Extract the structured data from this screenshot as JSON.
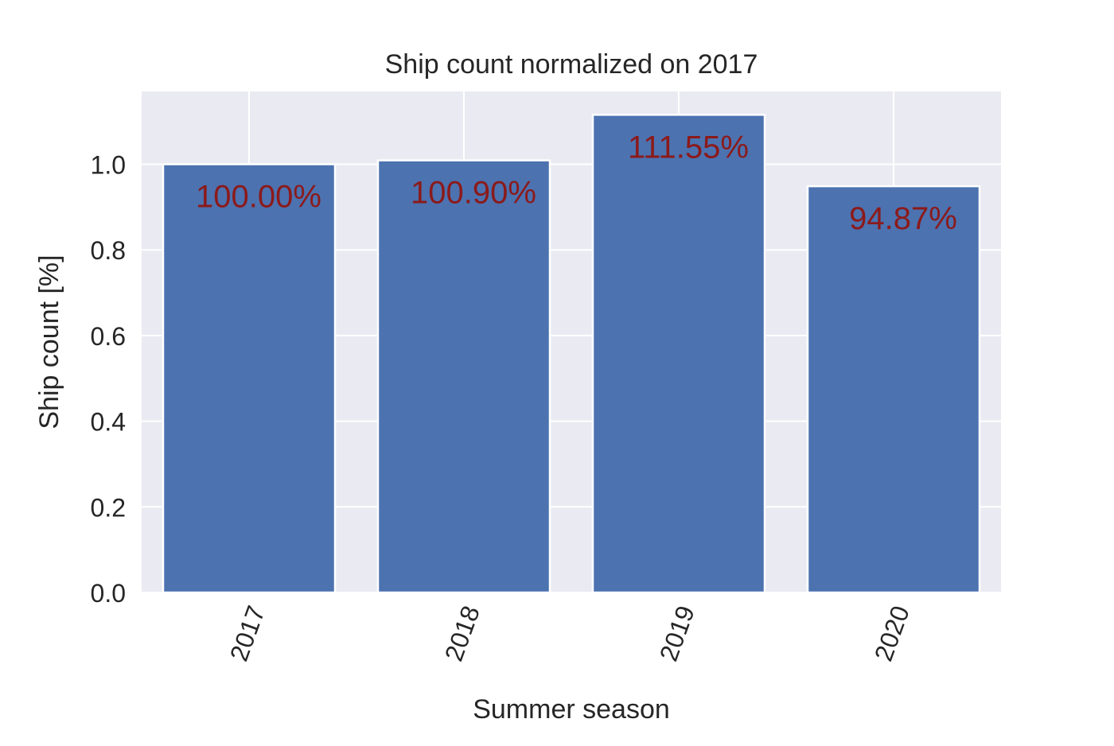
{
  "chart_data": {
    "type": "bar",
    "title": "Ship count normalized on 2017",
    "xlabel": "Summer season",
    "ylabel": "Ship count [%]",
    "categories": [
      "2017",
      "2018",
      "2019",
      "2020"
    ],
    "values": [
      1.0,
      1.009,
      1.1155,
      0.9487
    ],
    "data_labels": [
      "100.00%",
      "100.90%",
      "111.55%",
      "94.87%"
    ],
    "ylim": [
      0,
      1.17
    ],
    "yticks": [
      0.0,
      0.2,
      0.4,
      0.6,
      0.8,
      1.0
    ],
    "ytick_labels": [
      "0.0",
      "0.2",
      "0.4",
      "0.6",
      "0.8",
      "1.0"
    ],
    "grid": true,
    "legend": "none",
    "x_tick_rotation_deg": 70,
    "colors": {
      "bar": "#4c72b0",
      "label": "#8b1a1a",
      "plot_background": "#eaeaf2",
      "grid": "#ffffff",
      "text": "#262626"
    }
  }
}
